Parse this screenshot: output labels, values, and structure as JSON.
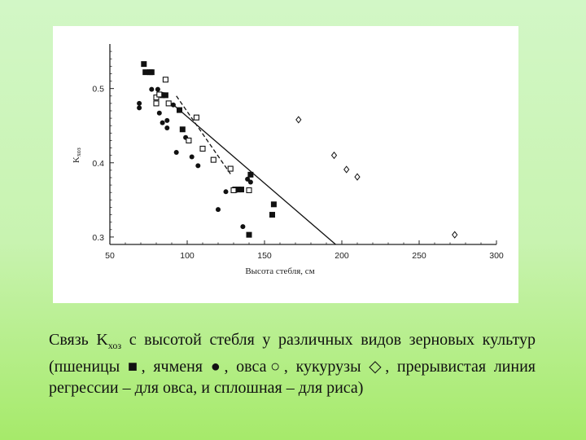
{
  "chart_data": {
    "type": "scatter",
    "xlabel": "Высота стебля, см",
    "ylabel_main": "K",
    "ylabel_sub": "хоз",
    "xlim": [
      50,
      300
    ],
    "ylim": [
      0.29,
      0.56
    ],
    "xticks": [
      "50",
      "100",
      "150",
      "200",
      "250",
      "300"
    ],
    "yticks": [
      "0.3",
      "0.4",
      "0.5"
    ],
    "xtick_values": [
      50,
      100,
      150,
      200,
      250,
      300
    ],
    "ytick_values": [
      0.3,
      0.4,
      0.5
    ],
    "series": [
      {
        "marker": "square-filled",
        "points": [
          [
            72,
            0.533
          ],
          [
            73,
            0.522
          ],
          [
            76,
            0.522
          ],
          [
            77,
            0.522
          ],
          [
            84,
            0.491
          ],
          [
            86,
            0.491
          ],
          [
            95,
            0.471
          ],
          [
            97,
            0.445
          ],
          [
            131,
            0.364
          ],
          [
            133,
            0.364
          ],
          [
            135,
            0.364
          ],
          [
            141,
            0.384
          ],
          [
            140,
            0.303
          ],
          [
            156,
            0.344
          ],
          [
            155,
            0.33
          ]
        ]
      },
      {
        "marker": "circle-filled",
        "points": [
          [
            69,
            0.48
          ],
          [
            69,
            0.474
          ],
          [
            77,
            0.499
          ],
          [
            81,
            0.499
          ],
          [
            84,
            0.492
          ],
          [
            91,
            0.478
          ],
          [
            82,
            0.467
          ],
          [
            84,
            0.454
          ],
          [
            87,
            0.457
          ],
          [
            87,
            0.447
          ],
          [
            99,
            0.434
          ],
          [
            93,
            0.414
          ],
          [
            103,
            0.408
          ],
          [
            107,
            0.396
          ],
          [
            120,
            0.337
          ],
          [
            139,
            0.378
          ],
          [
            141,
            0.374
          ],
          [
            125,
            0.361
          ],
          [
            132,
            0.363
          ],
          [
            136,
            0.314
          ]
        ]
      },
      {
        "marker": "square-open",
        "points": [
          [
            80,
            0.488
          ],
          [
            82,
            0.492
          ],
          [
            86,
            0.512
          ],
          [
            80,
            0.48
          ],
          [
            88,
            0.48
          ],
          [
            101,
            0.43
          ],
          [
            106,
            0.461
          ],
          [
            110,
            0.419
          ],
          [
            117,
            0.404
          ],
          [
            128,
            0.392
          ],
          [
            130,
            0.363
          ],
          [
            140,
            0.363
          ]
        ]
      },
      {
        "marker": "diamond-open",
        "points": [
          [
            172,
            0.458
          ],
          [
            195,
            0.41
          ],
          [
            203,
            0.391
          ],
          [
            210,
            0.381
          ],
          [
            273,
            0.303
          ]
        ]
      }
    ],
    "lines": [
      {
        "style": "dashed",
        "points": [
          [
            93,
            0.49
          ],
          [
            128,
            0.385
          ]
        ]
      },
      {
        "style": "solid",
        "points": [
          [
            90,
            0.48
          ],
          [
            196,
            0.29
          ]
        ]
      }
    ]
  },
  "caption": {
    "part1": "Связь K",
    "sub": "хоз",
    "part2": " с высотой стебля у различных видов зерновых культур (пшеницы ",
    "sym_wheat": "■",
    "part3": ", ячменя ",
    "sym_barley": "●",
    "part4": ", овса",
    "sym_oat": "○",
    "part5": ", кукурузы ",
    "sym_corn": "◇",
    "part6": ", прерывистая линия регрессии – для овса, и сплошная – для риса)"
  }
}
